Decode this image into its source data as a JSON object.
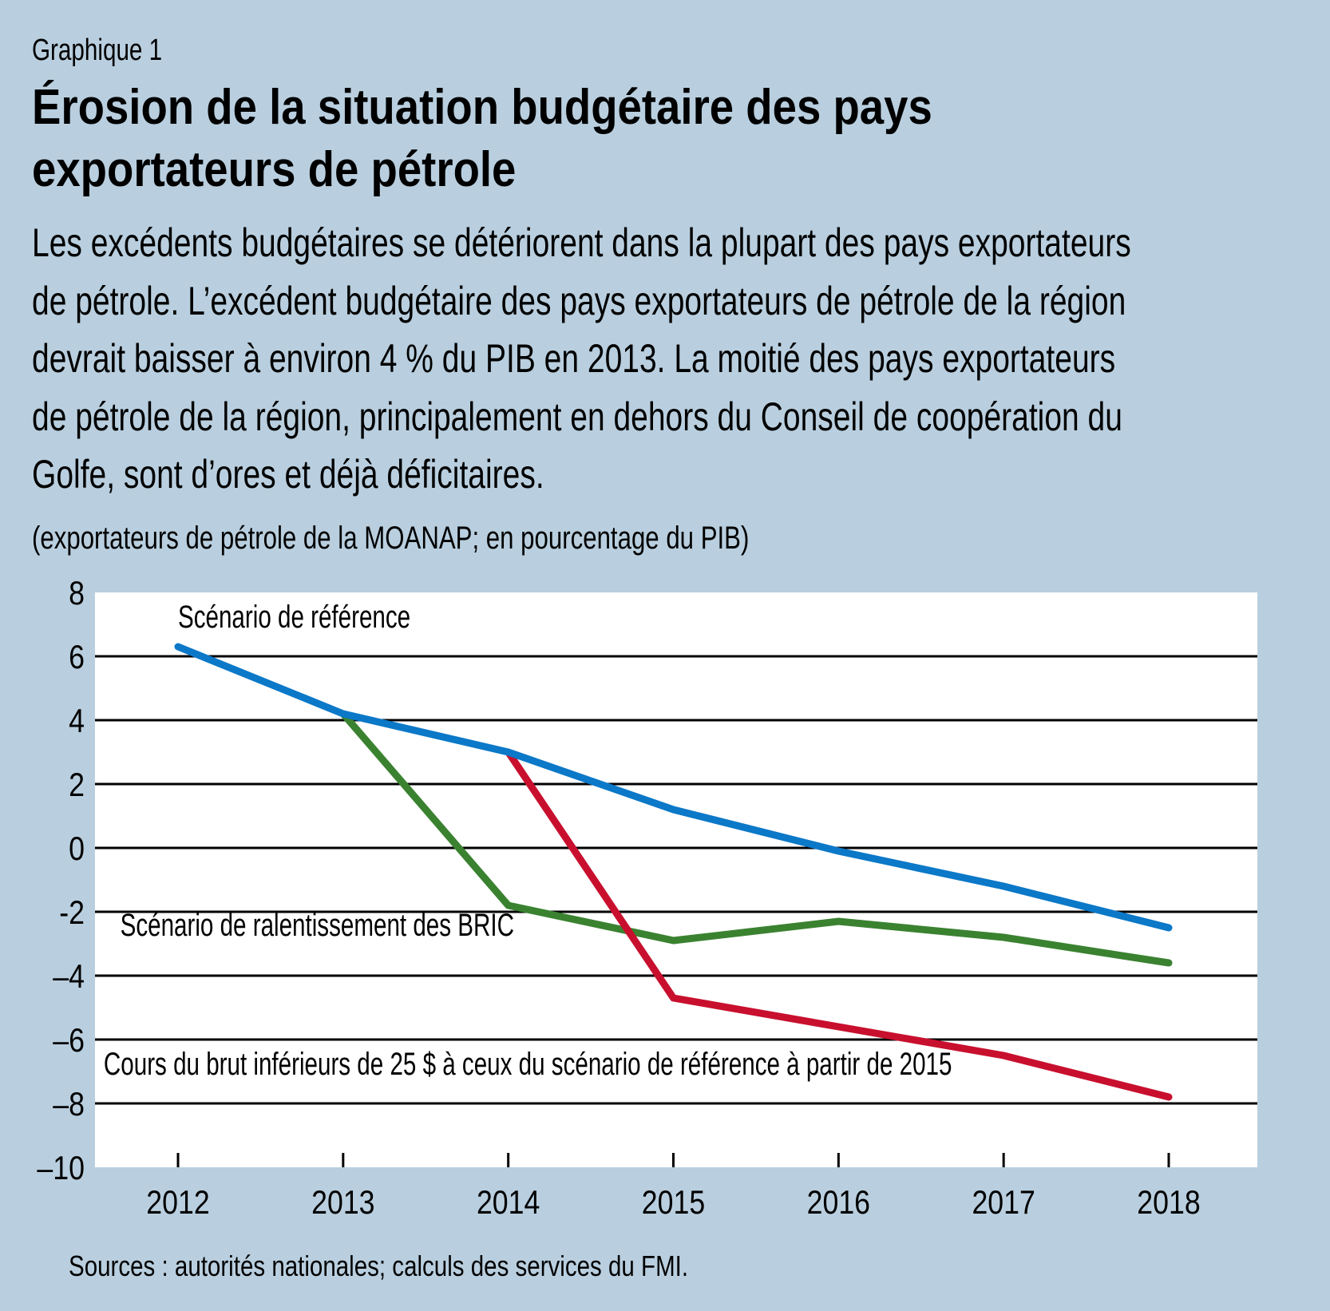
{
  "header": {
    "figure_label": "Graphique 1",
    "title_lines": [
      "Érosion de la situation budgétaire des pays",
      "exportateurs de pétrole"
    ],
    "description_lines": [
      "Les excédents budgétaires se détériorent dans la plupart des pays exportateurs",
      "de pétrole. L’excédent budgétaire des pays exportateurs de pétrole de la région",
      "devrait baisser à environ 4 % du PIB en 2013. La moitié des pays exportateurs",
      "de pétrole de la région, principalement en dehors du Conseil de coopération du",
      "Golfe, sont d’ores et déjà déficitaires."
    ],
    "units": "(exportateurs de pétrole de la MOANAP; en pourcentage du PIB)"
  },
  "footer": {
    "source": "Sources : autorités nationales; calculs des services du FMI."
  },
  "colors": {
    "background": "#b9cfdf",
    "plot_background": "#ffffff",
    "gridline": "#000000"
  },
  "chart_data": {
    "type": "line",
    "title": "Érosion de la situation budgétaire des pays exportateurs de pétrole",
    "xlabel": "",
    "ylabel": "(exportateurs de pétrole de la MOANAP; en pourcentage du PIB)",
    "x": [
      2012,
      2013,
      2014,
      2015,
      2016,
      2017,
      2018
    ],
    "x_tick_labels": [
      "2012",
      "2013",
      "2014",
      "2015",
      "2016",
      "2017",
      "2018"
    ],
    "ylim": [
      -10,
      8
    ],
    "y_ticks": [
      8,
      6,
      4,
      2,
      0,
      -2,
      -4,
      -6,
      -8,
      -10
    ],
    "y_tick_labels": [
      "8",
      "6",
      "4",
      "2",
      "0",
      "-2",
      "–4",
      "–6",
      "–8",
      "–10"
    ],
    "grid": true,
    "legend": "inline-labels",
    "series": [
      {
        "name": "Scénario de référence",
        "color": "#0b78c8",
        "values": [
          6.3,
          4.2,
          3.0,
          1.2,
          -0.1,
          -1.2,
          -2.5
        ],
        "label_anchor_year": 2012,
        "label_anchor_value": 6.9
      },
      {
        "name": "Scénario de ralentissement des BRIC",
        "color": "#3a8230",
        "values": [
          null,
          4.2,
          -1.8,
          -2.9,
          -2.3,
          -2.8,
          -3.6
        ],
        "label_anchor_year": 2011.65,
        "label_anchor_value": -2.75
      },
      {
        "name": "Cours du brut inférieurs de 25 $ à ceux du scénario de référence à partir de 2015",
        "color": "#c8102e",
        "values": [
          null,
          null,
          3.0,
          -4.7,
          -5.6,
          -6.5,
          -7.8
        ],
        "label_anchor_year": 2011.55,
        "label_anchor_value": -7.1
      }
    ]
  }
}
